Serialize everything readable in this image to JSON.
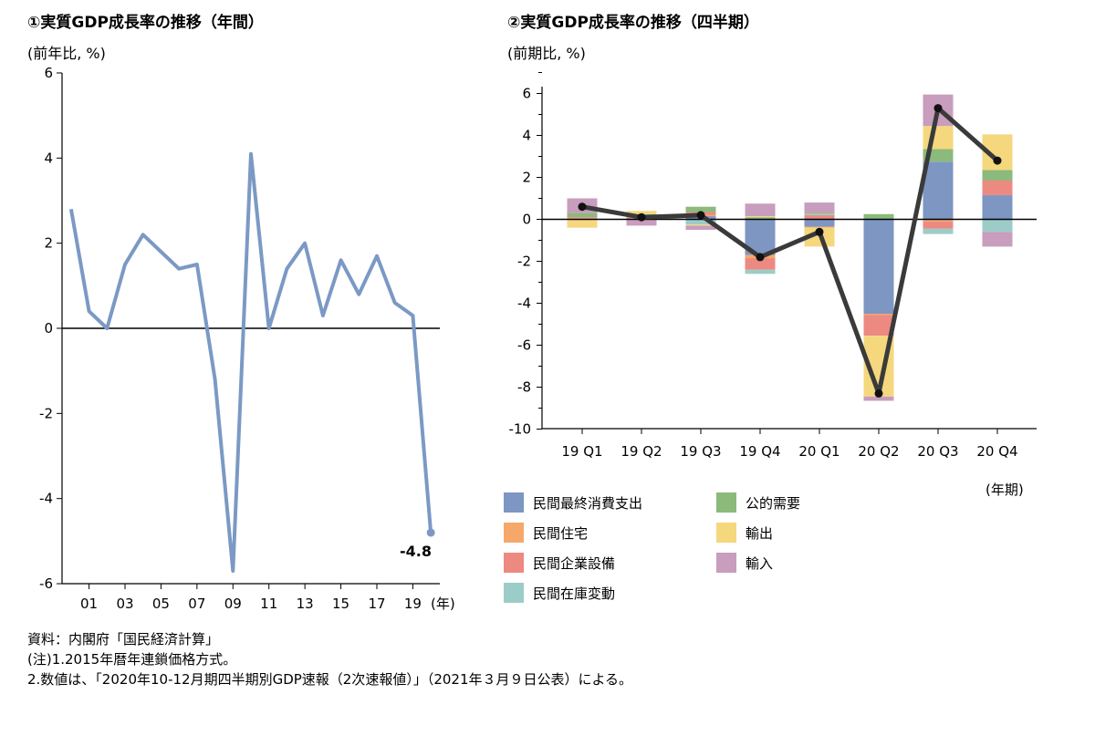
{
  "chart_data": [
    {
      "type": "line",
      "title": "①実質GDP成長率の推移（年間）",
      "unit_label": "(前年比, %)",
      "x_unit_label": "(年)",
      "ylim": [
        -6,
        6
      ],
      "yticks": [
        "6",
        "4",
        "2",
        "0",
        "-2",
        "-4",
        "-6"
      ],
      "ytick_values": [
        6,
        4,
        2,
        0,
        -2,
        -4,
        -6
      ],
      "x_tick_labels": [
        "01",
        "03",
        "05",
        "07",
        "09",
        "11",
        "13",
        "15",
        "17",
        "19"
      ],
      "x_tick_years": [
        2001,
        2003,
        2005,
        2007,
        2009,
        2011,
        2013,
        2015,
        2017,
        2019
      ],
      "xlim": [
        1999.5,
        2020.5
      ],
      "series": [
        {
          "color": "#7b99c4",
          "x": [
            2000,
            2001,
            2002,
            2003,
            2004,
            2005,
            2006,
            2007,
            2008,
            2009,
            2010,
            2011,
            2012,
            2013,
            2014,
            2015,
            2016,
            2017,
            2018,
            2019,
            2020
          ],
          "values": [
            2.8,
            0.4,
            0.0,
            1.5,
            2.2,
            1.8,
            1.4,
            1.5,
            -1.2,
            -5.7,
            4.1,
            0.0,
            1.4,
            2.0,
            0.3,
            1.6,
            0.8,
            1.7,
            0.6,
            0.3,
            -4.8
          ]
        }
      ],
      "annotation": "-4.8"
    },
    {
      "type": "bar+line",
      "title": "②実質GDP成長率の推移（四半期）",
      "unit_label": "(前期比, %)",
      "x_unit_label": "(年期)",
      "ylim": [
        -10,
        7
      ],
      "yticks": [
        "6",
        "4",
        "2",
        "0",
        "-2",
        "-4",
        "-6",
        "-8",
        "-10"
      ],
      "ytick_values": [
        6,
        4,
        2,
        0,
        -2,
        -4,
        -6,
        -8,
        -10
      ],
      "categories": [
        "19 Q1",
        "19 Q2",
        "19 Q3",
        "19 Q4",
        "20 Q1",
        "20 Q2",
        "20 Q3",
        "20 Q4"
      ],
      "stacked_series": [
        {
          "name": "民間最終消費支出",
          "color": "#7d96c2",
          "values": [
            0.0,
            0.05,
            0.15,
            -1.7,
            -0.35,
            -4.5,
            2.75,
            1.15
          ]
        },
        {
          "name": "民間住宅",
          "color": "#f5a86a",
          "values": [
            0.05,
            0.0,
            0.05,
            -0.15,
            -0.05,
            -0.05,
            -0.1,
            0.0
          ]
        },
        {
          "name": "民間企業設備",
          "color": "#ec8a82",
          "values": [
            0.05,
            0.05,
            0.15,
            -0.55,
            0.2,
            -1.0,
            -0.35,
            0.7
          ]
        },
        {
          "name": "民間在庫変動",
          "color": "#9cccc8",
          "values": [
            0.0,
            0.0,
            -0.25,
            -0.2,
            0.05,
            0.0,
            -0.25,
            -0.6
          ]
        },
        {
          "name": "公的需要",
          "color": "#8bba7c",
          "values": [
            0.2,
            0.15,
            0.25,
            0.1,
            0.05,
            0.25,
            0.6,
            0.5
          ]
        },
        {
          "name": "輸出",
          "color": "#f5d77e",
          "values": [
            -0.4,
            0.15,
            -0.05,
            0.05,
            -0.9,
            -2.9,
            1.1,
            1.7
          ]
        },
        {
          "name": "輸入",
          "color": "#c89dbd",
          "values": [
            0.7,
            -0.3,
            -0.2,
            0.6,
            0.5,
            -0.2,
            1.5,
            -0.7
          ]
        }
      ],
      "line_series": {
        "color": "#3a3a3a",
        "values": [
          0.6,
          0.1,
          0.2,
          -1.8,
          -0.6,
          -8.3,
          5.3,
          2.8
        ]
      },
      "legend_placement": "bottom"
    }
  ],
  "notes": [
    "資料：内閣府「国民経済計算」",
    "(注)1.2015年暦年連鎖価格方式。",
    "2.数値は、「2020年10-12月期四半期別GDP速報（2次速報値）」（2021年３月９日公表）による。"
  ]
}
